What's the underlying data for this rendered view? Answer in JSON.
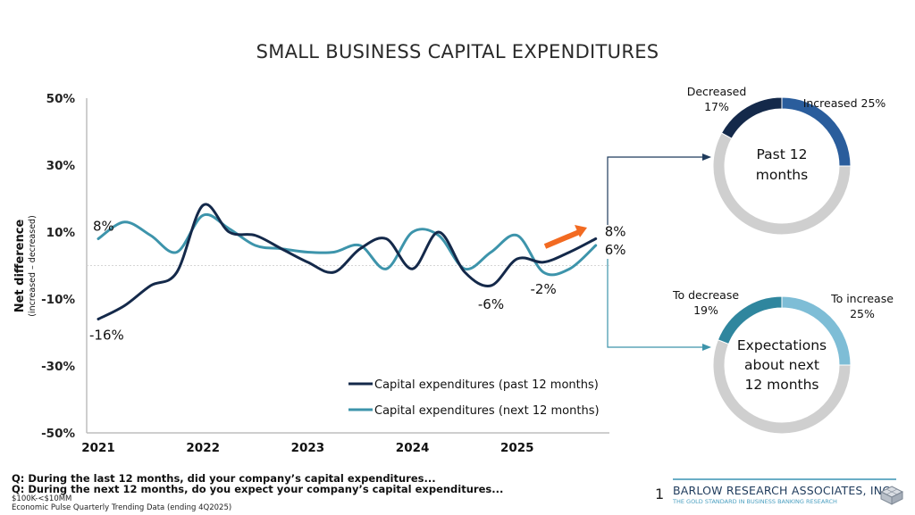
{
  "title": "SMALL BUSINESS CAPITAL EXPENDITURES",
  "chart_data": [
    {
      "type": "line",
      "title": "SMALL BUSINESS CAPITAL EXPENDITURES",
      "xlabel": "",
      "ylabel": "Net difference",
      "ylabel_sub": "(increased – decreased)",
      "ylim": [
        -50,
        50
      ],
      "yticks": [
        50,
        30,
        10,
        -10,
        -30,
        -50
      ],
      "ytick_labels": [
        "50%",
        "30%",
        "10%",
        "-10%",
        "-30%",
        "-50%"
      ],
      "x_tick_labels": [
        "2021",
        "2022",
        "2023",
        "2024",
        "2025"
      ],
      "x_quarters": [
        "1Q2021",
        "2Q2021",
        "3Q2021",
        "4Q2021",
        "1Q2022",
        "2Q2022",
        "3Q2022",
        "4Q2022",
        "1Q2023",
        "2Q2023",
        "3Q2023",
        "4Q2023",
        "1Q2024",
        "2Q2024",
        "3Q2024",
        "4Q2024",
        "1Q2025",
        "2Q2025",
        "3Q2025",
        "4Q2025"
      ],
      "zero_line": "dashed",
      "series": [
        {
          "name": "Capital expenditures (past 12 months)",
          "color": "#14294a",
          "values": [
            -16,
            -12,
            -6,
            -2,
            18,
            10,
            9,
            5,
            1,
            -2,
            5,
            8,
            -1,
            10,
            -2,
            -6,
            2,
            1,
            4,
            8
          ]
        },
        {
          "name": "Capital expenditures (next 12 months)",
          "color": "#3d94ab",
          "values": [
            8,
            13,
            9,
            4,
            15,
            11,
            6,
            5,
            4,
            4,
            6,
            -1,
            10,
            9,
            -1,
            4,
            9,
            -2,
            -1,
            6
          ]
        }
      ],
      "annotations": [
        {
          "text": "8%",
          "series": 1,
          "index": 0
        },
        {
          "text": "-16%",
          "series": 0,
          "index": 0
        },
        {
          "text": "-6%",
          "series": 0,
          "index": 15
        },
        {
          "text": "-2%",
          "series": 1,
          "index": 17
        },
        {
          "text": "8%",
          "series": 0,
          "index": 19
        },
        {
          "text": "6%",
          "series": 1,
          "index": 19
        }
      ],
      "trend_arrow": {
        "color": "#f26a21",
        "direction": "up-right"
      },
      "legend": {
        "placement": "bottom-right"
      }
    },
    {
      "type": "pie",
      "style": "donut",
      "title": "Past 12 months",
      "center_text": [
        "Past 12",
        "months"
      ],
      "slices": [
        {
          "label": "Increased",
          "value": 25,
          "display": "Increased 25%",
          "color": "#2a5d9c"
        },
        {
          "label": "Other",
          "value": 58,
          "display": "",
          "color": "#cfcfcf"
        },
        {
          "label": "Decreased",
          "value": 17,
          "display_lines": [
            "Decreased",
            "17%"
          ],
          "color": "#14294a"
        }
      ]
    },
    {
      "type": "pie",
      "style": "donut",
      "title": "Expectations about next 12 months",
      "center_text": [
        "Expectations",
        "about next",
        "12 months"
      ],
      "slices": [
        {
          "label": "To increase",
          "value": 25,
          "display_lines": [
            "To increase",
            "25%"
          ],
          "color": "#7ebdd6"
        },
        {
          "label": "Other",
          "value": 56,
          "display": "",
          "color": "#cfcfcf"
        },
        {
          "label": "To decrease",
          "value": 19,
          "display_lines": [
            "To decrease",
            "19%"
          ],
          "color": "#2f869e"
        }
      ]
    }
  ],
  "footer": {
    "questions": [
      "Q: During the last 12 months, did your company’s capital expenditures...",
      "Q: During the next 12 months, do you expect your company’s capital expenditures..."
    ],
    "notes": [
      "$100K-<$10MM",
      "Economic Pulse Quarterly Trending Data (ending 4Q2025)"
    ]
  },
  "brand": {
    "page_number": "1",
    "name": "BARLOW RESEARCH ASSOCIATES, INC.",
    "tagline": "THE GOLD STANDARD IN BUSINESS BANKING RESEARCH"
  }
}
